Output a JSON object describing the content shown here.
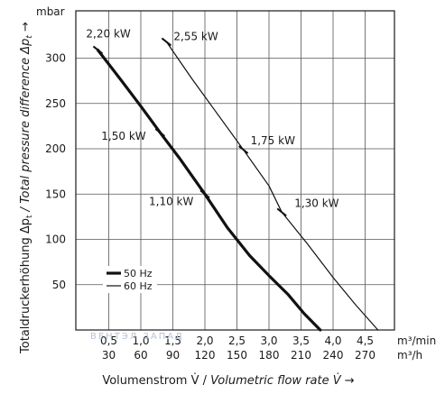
{
  "chart_data": {
    "type": "line",
    "y_unit_label": "mbar",
    "ylabel_prefix": "Totaldruckerhöhung Δp",
    "ylabel_prefix_sub": "t",
    "ylabel_italic_prefix": " / Total pressure difference Δp",
    "ylabel_italic_sub": "t",
    "ylabel_arrow": " →",
    "xlabel_plain": "Volumenstrom V̇ / ",
    "xlabel_italic": "Volumetric flow rate V̇",
    "xlabel_arrow": " →",
    "x_unit_primary": "m³/min",
    "x_unit_secondary": "m³/h",
    "xlim": [
      0.1,
      5.3
    ],
    "ylim": [
      0,
      345
    ],
    "grid": true,
    "x_ticks": [
      0.5,
      1.0,
      1.5,
      2.0,
      2.5,
      3.0,
      3.5,
      4.0,
      4.5
    ],
    "x_tick_labels_primary": [
      "0,5",
      "1,0",
      "1,5",
      "2,0",
      "2,5",
      "3,0",
      "3,5",
      "4,0",
      "4,5"
    ],
    "x_tick_labels_secondary": [
      "30",
      "60",
      "90",
      "120",
      "150",
      "180",
      "210",
      "240",
      "270"
    ],
    "y_ticks": [
      50,
      100,
      150,
      200,
      250,
      300
    ],
    "y_tick_labels": [
      "50",
      "100",
      "150",
      "200",
      "250",
      "300"
    ],
    "series": [
      {
        "name": "50 Hz",
        "color": "#111111",
        "style": "thick",
        "x": [
          0.33,
          0.7,
          1.0,
          1.3,
          1.6,
          2.0,
          2.35,
          2.7,
          3.0,
          3.3,
          3.55,
          3.8
        ],
        "y": [
          309,
          275,
          247,
          218,
          190,
          150,
          113,
          82,
          60,
          39,
          18,
          0
        ]
      },
      {
        "name": "60 Hz",
        "color": "#111111",
        "style": "thin",
        "x": [
          1.4,
          1.8,
          2.2,
          2.6,
          3.0,
          3.2,
          3.6,
          4.0,
          4.35,
          4.7
        ],
        "y": [
          318,
          277,
          238,
          199,
          159,
          130,
          95,
          58,
          28,
          0
        ]
      }
    ],
    "annotations": [
      {
        "label": "2,20 kW",
        "x": 0.33,
        "y": 309
      },
      {
        "label": "1,50 kW",
        "x": 1.3,
        "y": 218
      },
      {
        "label": "1,10 kW",
        "x": 2.0,
        "y": 150
      },
      {
        "label": "2,55 kW",
        "x": 1.4,
        "y": 318
      },
      {
        "label": "1,75 kW",
        "x": 2.6,
        "y": 199
      },
      {
        "label": "1,30 kW",
        "x": 3.2,
        "y": 130
      }
    ],
    "legend": [
      {
        "label": "50 Hz",
        "style": "thick"
      },
      {
        "label": "60 Hz",
        "style": "thin"
      }
    ],
    "legend_placement": "bottom-left"
  },
  "watermark": "ВЕНТЭЛ ЗАПАД"
}
